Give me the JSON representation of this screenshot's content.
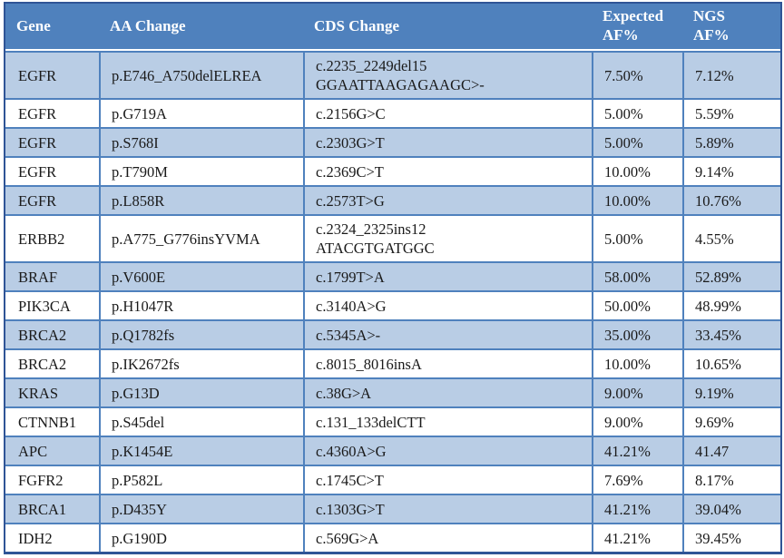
{
  "colors": {
    "header_bg": "#4F81BD",
    "header_text": "#FFFFFF",
    "row_shaded_bg": "#B9CDE5",
    "row_plain_bg": "#FFFFFF",
    "inner_border": "#4F81BD",
    "outer_border": "#2F5496",
    "body_text": "#1A1A1A"
  },
  "table": {
    "columns": [
      {
        "key": "gene",
        "label_lines": [
          "Gene"
        ]
      },
      {
        "key": "aa",
        "label_lines": [
          "AA Change"
        ]
      },
      {
        "key": "cds",
        "label_lines": [
          "CDS Change"
        ]
      },
      {
        "key": "expected",
        "label_lines": [
          "Expected",
          "AF%"
        ]
      },
      {
        "key": "ngs",
        "label_lines": [
          "NGS",
          "AF%"
        ]
      }
    ],
    "rows": [
      {
        "gene": "EGFR",
        "aa": "p.E746_A750delELREA",
        "cds": [
          "c.2235_2249del15",
          "GGAATTAAGAGAAGC>-"
        ],
        "expected": "7.50%",
        "ngs": "7.12%"
      },
      {
        "gene": "EGFR",
        "aa": "p.G719A",
        "cds": "c.2156G>C",
        "expected": "5.00%",
        "ngs": "5.59%"
      },
      {
        "gene": "EGFR",
        "aa": "p.S768I",
        "cds": "c.2303G>T",
        "expected": "5.00%",
        "ngs": "5.89%"
      },
      {
        "gene": "EGFR",
        "aa": "p.T790M",
        "cds": "c.2369C>T",
        "expected": "10.00%",
        "ngs": "9.14%"
      },
      {
        "gene": "EGFR",
        "aa": "p.L858R",
        "cds": "c.2573T>G",
        "expected": "10.00%",
        "ngs": "10.76%"
      },
      {
        "gene": "ERBB2",
        "aa": "p.A775_G776insYVMA",
        "cds": [
          "c.2324_2325ins12",
          "ATACGTGATGGC"
        ],
        "expected": "5.00%",
        "ngs": "4.55%"
      },
      {
        "gene": "BRAF",
        "aa": "p.V600E",
        "cds": "c.1799T>A",
        "expected": "58.00%",
        "ngs": "52.89%"
      },
      {
        "gene": "PIK3CA",
        "aa": "p.H1047R",
        "cds": "c.3140A>G",
        "expected": "50.00%",
        "ngs": "48.99%"
      },
      {
        "gene": "BRCA2",
        "aa": "p.Q1782fs",
        "cds": "c.5345A>-",
        "expected": "35.00%",
        "ngs": "33.45%"
      },
      {
        "gene": "BRCA2",
        "aa": "p.IK2672fs",
        "cds": "c.8015_8016insA",
        "expected": "10.00%",
        "ngs": "10.65%"
      },
      {
        "gene": "KRAS",
        "aa": "p.G13D",
        "cds": "c.38G>A",
        "expected": "9.00%",
        "ngs": "9.19%"
      },
      {
        "gene": "CTNNB1",
        "aa": "p.S45del",
        "cds": "c.131_133delCTT",
        "expected": "9.00%",
        "ngs": "9.69%"
      },
      {
        "gene": "APC",
        "aa": "p.K1454E",
        "cds": "c.4360A>G",
        "expected": "41.21%",
        "ngs": "41.47"
      },
      {
        "gene": "FGFR2",
        "aa": "p.P582L",
        "cds": "c.1745C>T",
        "expected": "7.69%",
        "ngs": "8.17%"
      },
      {
        "gene": "BRCA1",
        "aa": "p.D435Y",
        "cds": "c.1303G>T",
        "expected": "41.21%",
        "ngs": "39.04%"
      },
      {
        "gene": "IDH2",
        "aa": "p.G190D",
        "cds": "c.569G>A",
        "expected": "41.21%",
        "ngs": "39.45%"
      }
    ]
  }
}
